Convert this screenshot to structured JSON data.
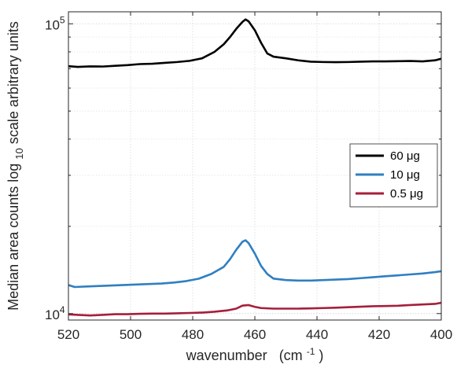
{
  "chart_data": {
    "type": "line",
    "xlabel": "wavenumber",
    "xlabel_unit": "(cm",
    "xlabel_unit_exp": "-1",
    "xlabel_unit_close": ")",
    "ylabel_part1": "Median area counts log",
    "ylabel_sub": "10",
    "ylabel_part2": " scale arbitrary units",
    "x_reversed": true,
    "xlim": [
      520,
      400
    ],
    "ylim": [
      9500,
      110000
    ],
    "y_scale": "log",
    "grid": true,
    "x_ticks": [
      520,
      500,
      480,
      460,
      440,
      420,
      400
    ],
    "x_tick_labels": [
      "520",
      "500",
      "480",
      "460",
      "440",
      "420",
      "400"
    ],
    "y_major_ticks": [
      {
        "value": 10000,
        "base": "10",
        "exp": "4"
      },
      {
        "value": 100000,
        "base": "10",
        "exp": "5"
      }
    ],
    "legend_position": "right",
    "series": [
      {
        "name": "60 μg",
        "color": "#000000",
        "x": [
          521,
          517,
          513,
          509,
          505,
          501,
          497,
          493,
          489,
          485,
          481,
          477,
          473,
          470,
          468,
          466,
          464,
          463,
          462,
          460,
          458,
          456,
          454,
          450,
          446,
          442,
          438,
          434,
          430,
          426,
          422,
          418,
          414,
          410,
          406,
          402,
          400
        ],
        "y": [
          71500,
          71000,
          71300,
          71200,
          71600,
          72000,
          72600,
          72800,
          73300,
          73800,
          74500,
          76000,
          80000,
          85000,
          90000,
          96000,
          101500,
          103500,
          102000,
          95000,
          86000,
          79000,
          77000,
          76000,
          74800,
          74000,
          73800,
          73700,
          73800,
          74000,
          74200,
          74200,
          74300,
          74400,
          74200,
          74800,
          75800
        ]
      },
      {
        "name": "10 μg",
        "color": "#2f7fc1",
        "x": [
          521,
          518,
          514,
          510,
          506,
          502,
          498,
          494,
          490,
          486,
          482,
          478,
          474,
          470,
          468,
          466,
          464,
          463,
          462,
          460,
          458,
          456,
          454,
          450,
          446,
          442,
          438,
          434,
          430,
          426,
          422,
          418,
          414,
          410,
          406,
          402,
          400
        ],
        "y": [
          12650,
          12350,
          12400,
          12450,
          12500,
          12550,
          12600,
          12650,
          12700,
          12800,
          12950,
          13200,
          13700,
          14500,
          15400,
          16600,
          17700,
          17900,
          17500,
          16100,
          14600,
          13700,
          13200,
          13050,
          13000,
          13000,
          13050,
          13100,
          13150,
          13250,
          13350,
          13450,
          13550,
          13650,
          13750,
          13900,
          14000
        ]
      },
      {
        "name": "0.5 μg",
        "color": "#a51f3a",
        "x": [
          521,
          517,
          513,
          509,
          505,
          501,
          497,
          493,
          489,
          485,
          481,
          477,
          473,
          469,
          466,
          464,
          462,
          460,
          458,
          454,
          450,
          446,
          442,
          438,
          434,
          430,
          426,
          422,
          418,
          414,
          410,
          406,
          402,
          400
        ],
        "y": [
          9950,
          9900,
          9850,
          9900,
          9950,
          9950,
          9980,
          10000,
          10000,
          10020,
          10050,
          10080,
          10150,
          10250,
          10400,
          10650,
          10700,
          10550,
          10450,
          10400,
          10400,
          10400,
          10420,
          10450,
          10480,
          10520,
          10560,
          10600,
          10620,
          10640,
          10700,
          10750,
          10800,
          10900
        ]
      }
    ]
  }
}
